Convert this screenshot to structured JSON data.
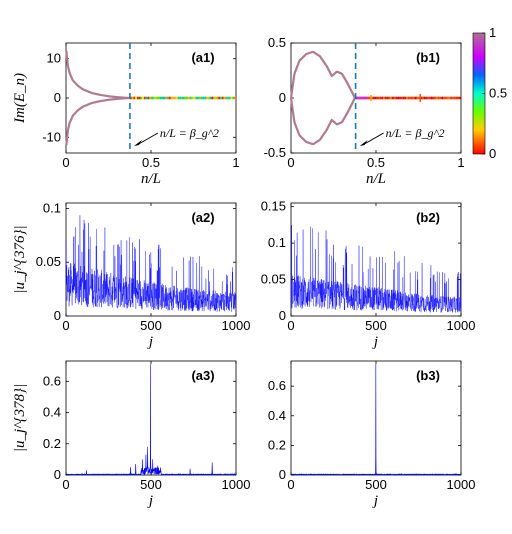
{
  "chart_data": [
    {
      "id": "a1",
      "type": "scatter",
      "panel_label": "(a1)",
      "xlabel": "n/L",
      "ylabel": "Im(E_n)",
      "xlim": [
        0,
        1
      ],
      "ylim": [
        -14,
        14
      ],
      "xticks": [
        "0",
        "0.5",
        "1"
      ],
      "yticks": [
        "-10",
        "0",
        "10"
      ],
      "vline_x": 0.376,
      "annotation": "n/L = β_g^2",
      "series": [
        {
          "upper_branch": {
            "x": [
              0.002,
              0.01,
              0.02,
              0.04,
              0.07,
              0.1,
              0.15,
              0.2,
              0.25,
              0.3,
              0.35,
              0.376
            ],
            "y": [
              12,
              8.5,
              6.5,
              4.5,
              3.1,
              2.2,
              1.3,
              0.8,
              0.45,
              0.22,
              0.06,
              0
            ]
          }
        },
        {
          "flat_from_x": 0.376,
          "to_x": 1.0,
          "y": 0
        }
      ]
    },
    {
      "id": "b1",
      "type": "scatter",
      "panel_label": "(b1)",
      "xlabel": "n/L",
      "ylabel": "",
      "xlim": [
        0,
        1
      ],
      "ylim": [
        -0.5,
        0.5
      ],
      "xticks": [
        "0",
        "0.5",
        "1"
      ],
      "yticks": [
        "-0.5",
        "0",
        "0.5"
      ],
      "vline_x": 0.38,
      "annotation": "n/L = β_g^2",
      "colorbar": {
        "ticks": [
          "0",
          "0.5",
          "1"
        ],
        "range": [
          0,
          1
        ]
      },
      "series": [
        {
          "upper_branch": {
            "x": [
              0.0,
              0.02,
              0.05,
              0.09,
              0.13,
              0.17,
              0.21,
              0.24,
              0.27,
              0.3,
              0.33,
              0.36,
              0.376
            ],
            "y": [
              0.0,
              0.22,
              0.34,
              0.4,
              0.42,
              0.38,
              0.29,
              0.2,
              0.24,
              0.22,
              0.14,
              0.05,
              0
            ]
          }
        },
        {
          "flat_from_x": 0.376,
          "to_x": 1.0,
          "y": 0
        }
      ]
    },
    {
      "id": "a2",
      "type": "line",
      "panel_label": "(a2)",
      "xlabel": "j",
      "ylabel": "|u_j^{376}|",
      "xlim": [
        0,
        1000
      ],
      "ylim": [
        0,
        0.105
      ],
      "xticks": [
        "0",
        "500",
        "1000"
      ],
      "yticks": [
        "0",
        "0.05",
        "0.1"
      ],
      "envelope": {
        "x": [
          0,
          200,
          400,
          600,
          800,
          1000
        ],
        "max": [
          0.1,
          0.085,
          0.075,
          0.065,
          0.055,
          0.045
        ],
        "typical": [
          0.035,
          0.03,
          0.025,
          0.02,
          0.017,
          0.015
        ]
      }
    },
    {
      "id": "b2",
      "type": "line",
      "panel_label": "(b2)",
      "xlabel": "j",
      "ylabel": "",
      "xlim": [
        0,
        1000
      ],
      "ylim": [
        0,
        0.155
      ],
      "xticks": [
        "0",
        "500",
        "1000"
      ],
      "yticks": [
        "0",
        "0.05",
        "0.1",
        "0.15"
      ],
      "envelope": {
        "x": [
          0,
          200,
          400,
          600,
          800,
          1000
        ],
        "max": [
          0.14,
          0.12,
          0.1,
          0.09,
          0.075,
          0.06
        ],
        "typical": [
          0.04,
          0.035,
          0.03,
          0.025,
          0.02,
          0.018
        ]
      }
    },
    {
      "id": "a3",
      "type": "line",
      "panel_label": "(a3)",
      "xlabel": "j",
      "ylabel": "|u_j^{378}|",
      "xlim": [
        0,
        1000
      ],
      "ylim": [
        0,
        0.73
      ],
      "xticks": [
        "0",
        "500",
        "1000"
      ],
      "yticks": [
        "0",
        "0.2",
        "0.4",
        "0.6"
      ],
      "peak": {
        "x": 497,
        "y": 0.71
      },
      "side_peaks": [
        {
          "x": 120,
          "y": 0.03
        },
        {
          "x": 380,
          "y": 0.05
        },
        {
          "x": 410,
          "y": 0.07
        },
        {
          "x": 450,
          "y": 0.1
        },
        {
          "x": 470,
          "y": 0.13
        },
        {
          "x": 480,
          "y": 0.18
        },
        {
          "x": 510,
          "y": 0.1
        },
        {
          "x": 540,
          "y": 0.06
        },
        {
          "x": 730,
          "y": 0.04
        },
        {
          "x": 860,
          "y": 0.08
        }
      ]
    },
    {
      "id": "b3",
      "type": "line",
      "panel_label": "(b3)",
      "xlabel": "j",
      "ylabel": "",
      "xlim": [
        0,
        1000
      ],
      "ylim": [
        0,
        0.77
      ],
      "xticks": [
        "0",
        "500",
        "1000"
      ],
      "yticks": [
        "0",
        "0.2",
        "0.4",
        "0.6"
      ],
      "peak": {
        "x": 499,
        "y": 0.75
      }
    }
  ]
}
